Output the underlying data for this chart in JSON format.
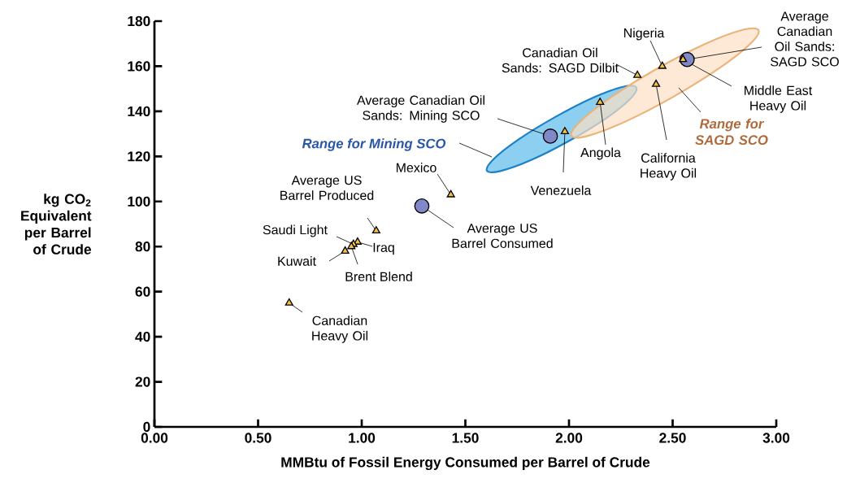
{
  "chart_data": {
    "type": "scatter",
    "xlabel": "MMBtu of Fossil Energy Consumed per Barrel of Crude",
    "ylabel": "kg CO$_{2}$ Equivalent per Barrel of Crude",
    "xlim": [
      0,
      3
    ],
    "ylim": [
      0,
      180
    ],
    "xticks": [
      {
        "value": 0,
        "label": "0.00"
      },
      {
        "value": 0.5,
        "label": "0.50"
      },
      {
        "value": 1,
        "label": "1.00"
      },
      {
        "value": 1.5,
        "label": "1.50"
      },
      {
        "value": 2,
        "label": "2.00"
      },
      {
        "value": 2.5,
        "label": "2.50"
      },
      {
        "value": 3,
        "label": "3.00"
      }
    ],
    "yticks": [
      0,
      20,
      40,
      60,
      80,
      100,
      120,
      140,
      160,
      180
    ],
    "series": [
      {
        "type": "area",
        "name": "Range for Mining SCO",
        "color": "#1a80c8",
        "x": [
          2.325,
          2.293,
          2.174,
          1.997,
          1.813,
          1.669,
          1.604,
          1.636,
          1.756,
          1.932,
          2.117,
          2.261
        ],
        "values": [
          150.5,
          145.3,
          136.6,
          126.7,
          118.2,
          113.5,
          113.6,
          118.8,
          127.5,
          137.4,
          146.1,
          150.9
        ]
      },
      {
        "type": "area",
        "name": "Range for SAGD SCO",
        "color": "#eab37a",
        "x": [
          2.914,
          2.873,
          2.722,
          2.501,
          2.271,
          2.091,
          2.012,
          2.053,
          2.204,
          2.424,
          2.655,
          2.834
        ],
        "values": [
          176.0,
          169.8,
          158.9,
          146.3,
          135.4,
          129.1,
          129.1,
          135.4,
          146.3,
          158.9,
          169.8,
          176.0
        ]
      },
      {
        "type": "scatter",
        "marker": "triangle",
        "color": "#f4c440",
        "x": [
          0.65,
          0.92,
          0.95,
          0.96,
          0.98,
          1.07,
          1.43,
          1.98,
          2.15,
          2.33,
          2.45,
          2.42,
          2.55
        ],
        "values": [
          55,
          78,
          80,
          81,
          82,
          87,
          103,
          131,
          144,
          156,
          160,
          152,
          163
        ]
      },
      {
        "type": "scatter",
        "marker": "circle",
        "color": "#8088c8",
        "x": [
          1.29,
          1.91,
          2.57
        ],
        "values": [
          98,
          129,
          163
        ]
      }
    ],
    "annotations": [
      {
        "text": "Canadian Heavy Oil",
        "x": 0.65,
        "y": 55
      },
      {
        "text": "Kuwait",
        "x": 0.92,
        "y": 78
      },
      {
        "text": "Brent Blend",
        "x": 0.95,
        "y": 80
      },
      {
        "text": "Saudi Light",
        "x": 0.96,
        "y": 81
      },
      {
        "text": "Iraq",
        "x": 0.98,
        "y": 82
      },
      {
        "text": "Average US Barrel Produced",
        "x": 1.07,
        "y": 87
      },
      {
        "text": "Mexico",
        "x": 1.43,
        "y": 103
      },
      {
        "text": "Average US Barrel Consumed",
        "x": 1.29,
        "y": 98
      },
      {
        "text": "Average Canadian Oil Sands: Mining SCO",
        "x": 1.91,
        "y": 129
      },
      {
        "text": "Venezuela",
        "x": 1.98,
        "y": 131
      },
      {
        "text": "Angola",
        "x": 2.15,
        "y": 144
      },
      {
        "text": "Canadian Oil Sands: SAGD Dilbit",
        "x": 2.33,
        "y": 156
      },
      {
        "text": "Nigeria",
        "x": 2.45,
        "y": 160
      },
      {
        "text": "California Heavy Oil",
        "x": 2.42,
        "y": 152
      },
      {
        "text": "Middle East Heavy Oil",
        "x": 2.55,
        "y": 163
      },
      {
        "text": "Average Canadian Oil Sands: SAGD SCO",
        "x": 2.57,
        "y": 163
      }
    ]
  }
}
